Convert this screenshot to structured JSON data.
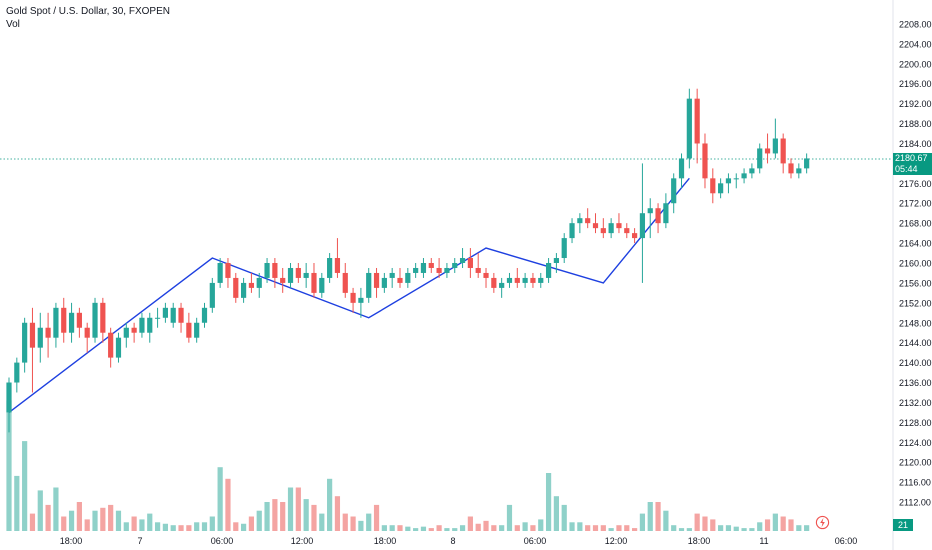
{
  "legend": {
    "title": "Gold Spot / U.S. Dollar, 30, FXOPEN",
    "vol_label": "Vol"
  },
  "last_price": {
    "value": "2180.67",
    "countdown": "05:44"
  },
  "volume_readout": "21",
  "colors": {
    "up": "#26a69a",
    "down": "#ef5350",
    "up_vol": "#8fd1c9",
    "down_vol": "#f4a4a2",
    "trendline": "#1e40e0",
    "price_line": "#089981"
  },
  "chart_data": {
    "type": "candlestick",
    "title": "Gold Spot / U.S. Dollar, 30, FXOPEN",
    "ylim": [
      2110,
      2210
    ],
    "y_ticks": [
      2112,
      2116,
      2120,
      2124,
      2128,
      2132,
      2136,
      2140,
      2144,
      2148,
      2152,
      2156,
      2160,
      2164,
      2168,
      2172,
      2176,
      2180,
      2184,
      2188,
      2192,
      2196,
      2200,
      2204,
      2208
    ],
    "x_ticks": [
      "18:00",
      "7",
      "06:00",
      "12:00",
      "18:00",
      "8",
      "06:00",
      "12:00",
      "18:00",
      "11",
      "06:00"
    ],
    "last_price": 2180.67,
    "candles": [
      [
        2130,
        2137,
        2126,
        2136,
        90
      ],
      [
        2136,
        2141,
        2134,
        2140,
        38
      ],
      [
        2140,
        2149,
        2138,
        2148,
        62
      ],
      [
        2148,
        2151,
        2134,
        2143,
        12
      ],
      [
        2143,
        2150,
        2140,
        2147,
        28
      ],
      [
        2147,
        2150,
        2141,
        2145,
        18
      ],
      [
        2145,
        2152,
        2143,
        2151,
        30
      ],
      [
        2151,
        2153,
        2144,
        2146,
        10
      ],
      [
        2146,
        2152,
        2144,
        2150,
        14
      ],
      [
        2150,
        2151,
        2145,
        2147,
        20
      ],
      [
        2147,
        2148,
        2142,
        2145,
        8
      ],
      [
        2145,
        2153,
        2144,
        2152,
        14
      ],
      [
        2152,
        2153,
        2144,
        2146,
        16
      ],
      [
        2146,
        2147,
        2139,
        2141,
        18
      ],
      [
        2141,
        2146,
        2140,
        2145,
        14
      ],
      [
        2145,
        2148,
        2143,
        2147,
        6
      ],
      [
        2147,
        2148,
        2144,
        2146,
        10
      ],
      [
        2146,
        2150,
        2145,
        2149,
        8
      ],
      [
        2146,
        2150,
        2144,
        2149,
        12
      ],
      [
        2149,
        2151,
        2147,
        2149,
        6
      ],
      [
        2149,
        2152,
        2148,
        2151,
        5
      ],
      [
        2148,
        2152,
        2147,
        2151,
        4
      ],
      [
        2151,
        2152,
        2146,
        2148,
        4
      ],
      [
        2148,
        2150,
        2144,
        2145,
        4
      ],
      [
        2145,
        2149,
        2144,
        2148,
        6
      ],
      [
        2148,
        2152,
        2147,
        2151,
        6
      ],
      [
        2151,
        2157,
        2150,
        2156,
        10
      ],
      [
        2156,
        2161,
        2155,
        2160,
        44
      ],
      [
        2160,
        2161,
        2155,
        2157,
        36
      ],
      [
        2157,
        2158,
        2152,
        2153,
        6
      ],
      [
        2153,
        2157,
        2152,
        2156,
        5
      ],
      [
        2156,
        2158,
        2154,
        2155,
        10
      ],
      [
        2155,
        2158,
        2153,
        2157,
        14
      ],
      [
        2157,
        2161,
        2156,
        2160,
        20
      ],
      [
        2160,
        2161,
        2155,
        2157,
        22
      ],
      [
        2157,
        2159,
        2154,
        2156,
        20
      ],
      [
        2156,
        2160,
        2155,
        2159,
        30
      ],
      [
        2159,
        2160,
        2156,
        2157,
        30
      ],
      [
        2157,
        2160,
        2155,
        2158,
        22
      ],
      [
        2158,
        2160,
        2153,
        2154,
        18
      ],
      [
        2154,
        2158,
        2153,
        2157,
        12
      ],
      [
        2157,
        2162,
        2156,
        2161,
        36
      ],
      [
        2161,
        2165,
        2157,
        2158,
        24
      ],
      [
        2158,
        2160,
        2153,
        2154,
        12
      ],
      [
        2154,
        2155,
        2150,
        2152,
        10
      ],
      [
        2152,
        2155,
        2149,
        2153,
        7
      ],
      [
        2153,
        2159,
        2152,
        2158,
        12
      ],
      [
        2158,
        2159,
        2153,
        2155,
        18
      ],
      [
        2155,
        2158,
        2154,
        2157,
        4
      ],
      [
        2157,
        2159,
        2155,
        2158,
        4
      ],
      [
        2157,
        2159,
        2155,
        2156,
        4
      ],
      [
        2156,
        2159,
        2155,
        2158,
        3
      ],
      [
        2158,
        2160,
        2157,
        2159,
        2
      ],
      [
        2158,
        2161,
        2157,
        2160,
        3
      ],
      [
        2160,
        2161,
        2158,
        2159,
        2
      ],
      [
        2159,
        2161,
        2157,
        2158,
        4
      ],
      [
        2158,
        2160,
        2157,
        2159,
        2
      ],
      [
        2159,
        2161,
        2158,
        2160,
        2
      ],
      [
        2160,
        2163,
        2159,
        2161,
        4
      ],
      [
        2161,
        2163,
        2157,
        2159,
        10
      ],
      [
        2159,
        2162,
        2157,
        2158,
        5
      ],
      [
        2158,
        2159,
        2155,
        2157,
        7
      ],
      [
        2157,
        2158,
        2154,
        2155,
        4
      ],
      [
        2155,
        2157,
        2153,
        2156,
        4
      ],
      [
        2156,
        2158,
        2155,
        2157,
        18
      ],
      [
        2157,
        2159,
        2155,
        2156,
        4
      ],
      [
        2156,
        2158,
        2155,
        2157,
        6
      ],
      [
        2157,
        2158,
        2155,
        2156,
        4
      ],
      [
        2156,
        2158,
        2155,
        2157,
        8
      ],
      [
        2157,
        2161,
        2156,
        2160,
        40
      ],
      [
        2160,
        2162,
        2158,
        2161,
        24
      ],
      [
        2161,
        2166,
        2160,
        2165,
        18
      ],
      [
        2165,
        2169,
        2164,
        2168,
        6
      ],
      [
        2168,
        2170,
        2166,
        2169,
        6
      ],
      [
        2169,
        2171,
        2167,
        2168,
        4
      ],
      [
        2168,
        2170,
        2166,
        2167,
        4
      ],
      [
        2167,
        2169,
        2165,
        2166,
        4
      ],
      [
        2166,
        2169,
        2165,
        2168,
        2
      ],
      [
        2168,
        2170,
        2166,
        2167,
        4
      ],
      [
        2167,
        2168,
        2165,
        2166,
        4
      ],
      [
        2166,
        2167,
        2164,
        2165,
        2
      ],
      [
        2165,
        2180,
        2156,
        2170,
        12
      ],
      [
        2170,
        2173,
        2165,
        2171,
        20
      ],
      [
        2171,
        2172,
        2166,
        2168,
        20
      ],
      [
        2168,
        2174,
        2167,
        2172,
        14
      ],
      [
        2172,
        2178,
        2170,
        2177,
        4
      ],
      [
        2177,
        2182,
        2175,
        2181,
        2
      ],
      [
        2181,
        2195,
        2179,
        2193,
        2
      ],
      [
        2193,
        2195,
        2180,
        2184,
        12
      ],
      [
        2184,
        2186,
        2175,
        2177,
        10
      ],
      [
        2177,
        2179,
        2172,
        2174,
        8
      ],
      [
        2174,
        2177,
        2173,
        2176,
        4
      ],
      [
        2176,
        2178,
        2174,
        2177,
        4
      ],
      [
        2177,
        2178,
        2175,
        2177,
        3
      ],
      [
        2177,
        2179,
        2176,
        2178,
        2
      ],
      [
        2178,
        2180,
        2177,
        2179,
        2
      ],
      [
        2179,
        2184,
        2178,
        2183,
        6
      ],
      [
        2183,
        2186,
        2180,
        2182,
        8
      ],
      [
        2182,
        2189,
        2181,
        2185,
        12
      ],
      [
        2185,
        2186,
        2178,
        2180,
        10
      ],
      [
        2180,
        2181,
        2177,
        2178,
        8
      ],
      [
        2178,
        2180,
        2177,
        2179,
        4
      ],
      [
        2179,
        2182,
        2178,
        2181,
        4
      ]
    ],
    "trendline": [
      [
        0,
        2130
      ],
      [
        26,
        2161
      ],
      [
        46,
        2149
      ],
      [
        61,
        2163
      ],
      [
        76,
        2156
      ],
      [
        87,
        2177
      ]
    ]
  }
}
